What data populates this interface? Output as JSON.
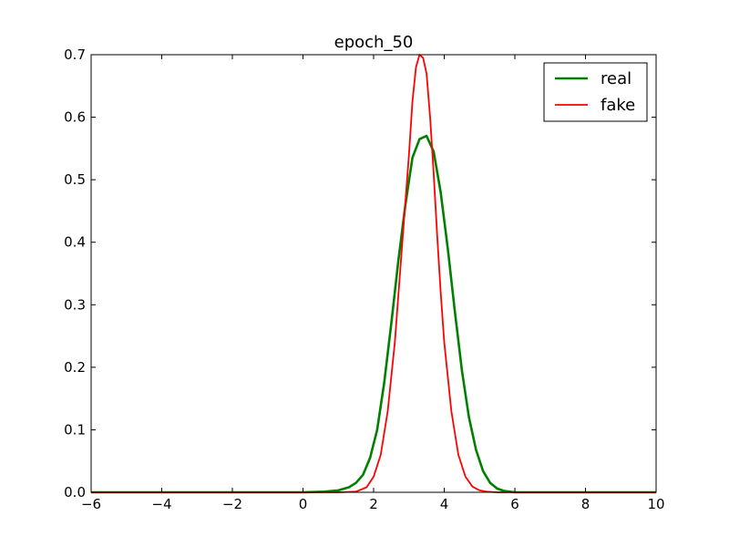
{
  "chart_data": {
    "type": "line",
    "title": "epoch_50",
    "xlabel": "",
    "ylabel": "",
    "xlim": [
      -6,
      10
    ],
    "ylim": [
      0.0,
      0.7
    ],
    "x_ticks": [
      -6,
      -4,
      -2,
      0,
      2,
      4,
      6,
      8,
      10
    ],
    "x_tick_labels": [
      "−6",
      "−4",
      "−2",
      "0",
      "2",
      "4",
      "6",
      "8",
      "10"
    ],
    "y_ticks": [
      0.0,
      0.1,
      0.2,
      0.3,
      0.4,
      0.5,
      0.6,
      0.7
    ],
    "y_tick_labels": [
      "0.0",
      "0.1",
      "0.2",
      "0.3",
      "0.4",
      "0.5",
      "0.6",
      "0.7"
    ],
    "grid": false,
    "legend_position": "top-right",
    "series": [
      {
        "name": "real",
        "color": "#008000",
        "x": [
          -6,
          0,
          0.6,
          1.0,
          1.3,
          1.5,
          1.7,
          1.9,
          2.1,
          2.3,
          2.5,
          2.7,
          2.9,
          3.1,
          3.3,
          3.5,
          3.7,
          3.9,
          4.1,
          4.3,
          4.5,
          4.7,
          4.9,
          5.1,
          5.3,
          5.5,
          5.7,
          6.0,
          7.0,
          10
        ],
        "y": [
          0.0,
          0.0,
          0.001,
          0.003,
          0.008,
          0.015,
          0.028,
          0.055,
          0.1,
          0.175,
          0.27,
          0.37,
          0.46,
          0.535,
          0.565,
          0.57,
          0.545,
          0.48,
          0.39,
          0.29,
          0.195,
          0.12,
          0.068,
          0.034,
          0.015,
          0.006,
          0.002,
          0.0,
          0.0,
          0.0
        ]
      },
      {
        "name": "fake",
        "color": "#ff0000",
        "x": [
          -6,
          0,
          1.0,
          1.5,
          1.8,
          2.0,
          2.2,
          2.4,
          2.6,
          2.8,
          3.0,
          3.1,
          3.2,
          3.3,
          3.4,
          3.5,
          3.6,
          3.7,
          3.8,
          3.9,
          4.0,
          4.2,
          4.4,
          4.6,
          4.8,
          5.0,
          5.2,
          5.5,
          6.0,
          10
        ],
        "y": [
          0.0,
          0.0,
          0.0,
          0.001,
          0.008,
          0.025,
          0.06,
          0.13,
          0.24,
          0.39,
          0.54,
          0.625,
          0.68,
          0.7,
          0.695,
          0.67,
          0.6,
          0.51,
          0.41,
          0.32,
          0.24,
          0.13,
          0.06,
          0.025,
          0.009,
          0.003,
          0.001,
          0.0,
          0.0,
          0.0
        ]
      }
    ]
  }
}
